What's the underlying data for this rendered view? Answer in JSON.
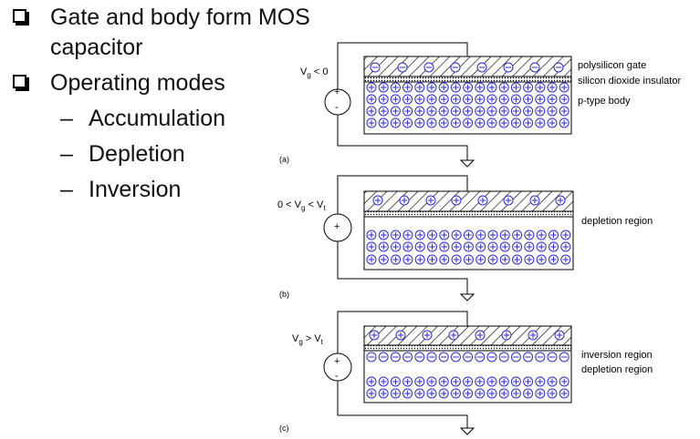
{
  "bullets": {
    "item1": {
      "line1": "Gate and body form MOS",
      "line2": "capacitor"
    },
    "item2": "Operating modes",
    "subitems": [
      {
        "dash": "–",
        "text": "Accumulation"
      },
      {
        "dash": "–",
        "text": "Depletion"
      },
      {
        "dash": "–",
        "text": "Inversion"
      }
    ]
  },
  "panels": [
    {
      "id": "a",
      "mark": "(a)",
      "voltage": {
        "pre": "V",
        "sub": "g",
        "post": " < 0"
      },
      "labels": [
        "polysilicon gate",
        "silicon dioxide insulator",
        "p-type body"
      ],
      "gate_charge": "negative",
      "body_rows": [
        "plus",
        "plus",
        "plus",
        "plus"
      ]
    },
    {
      "id": "b",
      "mark": "(b)",
      "voltage": {
        "pre": "0 < V",
        "sub": "g",
        "mid": " < V",
        "sub2": "t"
      },
      "labels": [
        "depletion region"
      ],
      "gate_charge": "positive",
      "body_rows": [
        "empty",
        "plus",
        "plus",
        "plus"
      ]
    },
    {
      "id": "c",
      "mark": "(c)",
      "voltage": {
        "pre": "V",
        "sub": "g",
        "mid": " > V",
        "sub2": "t"
      },
      "labels": [
        "inversion region",
        "depletion region"
      ],
      "gate_charge": "positive",
      "body_rows": [
        "minus",
        "empty",
        "plus",
        "plus"
      ]
    }
  ],
  "source": {
    "plus": "+",
    "minus": "-"
  },
  "colors": {
    "charge": "#2b2bd6",
    "stroke": "#000000"
  }
}
